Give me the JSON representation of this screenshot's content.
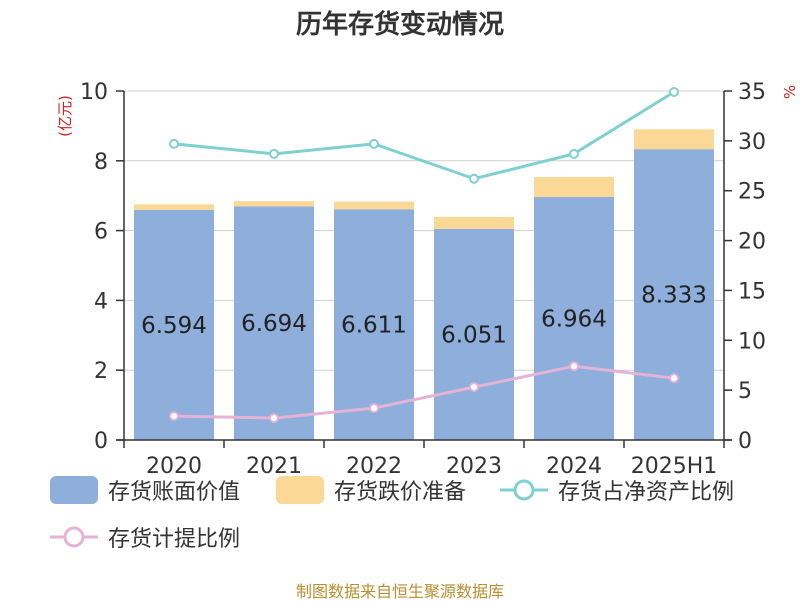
{
  "source": "制图数据来自恒生聚源数据库",
  "colors": {
    "book_value": "#8eaedb",
    "impairment": "#fcd896",
    "inventory_ratio": "#7fd0d0",
    "provision_ratio": "#e4b3d6",
    "axis_unit": "#cc2222",
    "source_text": "#b8902e"
  },
  "chart_data": {
    "type": "bar",
    "title": "历年存货变动情况",
    "categories": [
      "2020",
      "2021",
      "2022",
      "2023",
      "2024",
      "2025H1"
    ],
    "stacked": true,
    "left_axis": {
      "unit": "(亿元)",
      "min": 0,
      "max": 10,
      "ticks": [
        0,
        2,
        4,
        6,
        8,
        10
      ]
    },
    "right_axis": {
      "unit": "%",
      "min": 0,
      "max": 35,
      "ticks": [
        0,
        5,
        10,
        15,
        20,
        25,
        30,
        35
      ]
    },
    "grid": true,
    "legend_position": "bottom",
    "series": [
      {
        "name": "存货账面价值",
        "type": "bar",
        "axis": "left",
        "values": [
          6.594,
          6.694,
          6.611,
          6.051,
          6.964,
          8.333
        ],
        "labels": [
          "6.594",
          "6.694",
          "6.611",
          "6.051",
          "6.964",
          "8.333"
        ]
      },
      {
        "name": "存货跌价准备",
        "type": "bar",
        "axis": "left",
        "values": [
          0.16,
          0.15,
          0.22,
          0.34,
          0.57,
          0.57
        ]
      },
      {
        "name": "存货占净资产比例",
        "type": "line",
        "axis": "right",
        "values": [
          29.7,
          28.7,
          29.7,
          26.2,
          28.7,
          34.9
        ]
      },
      {
        "name": "存货计提比例",
        "type": "line",
        "axis": "right",
        "values": [
          2.4,
          2.2,
          3.2,
          5.3,
          7.4,
          6.2
        ]
      }
    ]
  }
}
